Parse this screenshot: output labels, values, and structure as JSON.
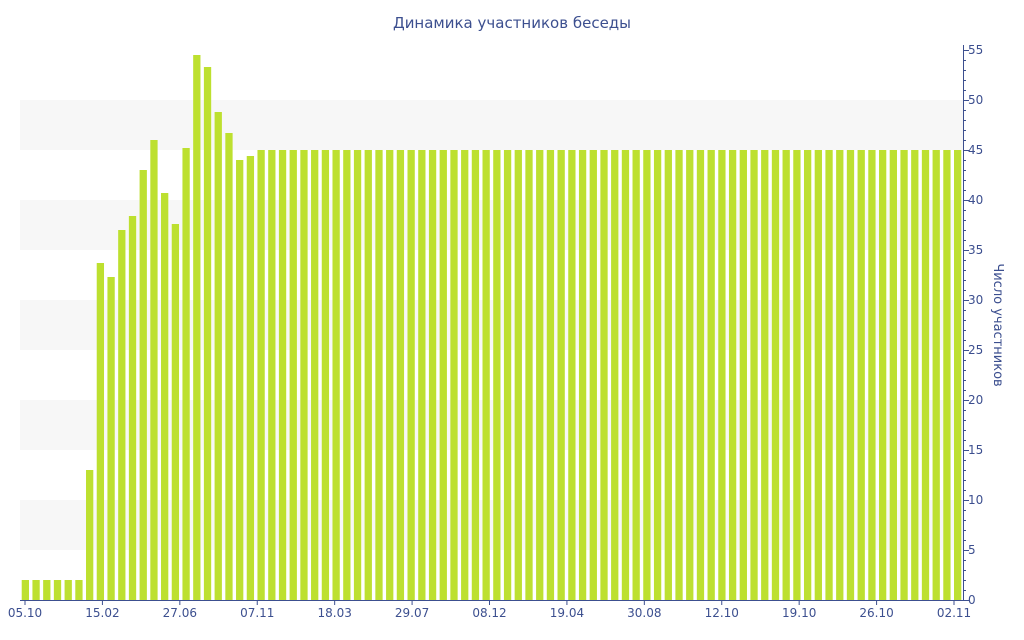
{
  "chart_data": {
    "type": "bar",
    "title": "Динамика участников беседы",
    "xlabel": "",
    "ylabel": "Число участников",
    "y_axis_side": "right",
    "ylim": [
      0,
      55
    ],
    "yticks": [
      0,
      5,
      10,
      15,
      20,
      25,
      30,
      35,
      40,
      45,
      50,
      55
    ],
    "x_tick_labels": [
      "05.10",
      "15.02",
      "27.06",
      "07.11",
      "18.03",
      "29.07",
      "08.12",
      "19.04",
      "30.08",
      "12.10",
      "19.10",
      "26.10",
      "02.11"
    ],
    "grid": "alternating horizontal bands",
    "colors": {
      "bar": "#bde02f",
      "text": "#3c4f8f",
      "band": "#f7f7f7",
      "axis": "#3c4f8f"
    },
    "values": [
      2,
      2,
      2,
      2,
      2,
      2,
      13,
      33.7,
      32.3,
      37,
      38.4,
      43,
      46,
      40.7,
      37.6,
      45.2,
      54.5,
      53.3,
      48.8,
      46.7,
      44,
      44.4,
      45,
      45,
      45,
      45,
      45,
      45,
      45,
      45,
      45,
      45,
      45,
      45,
      45,
      45,
      45,
      45,
      45,
      45,
      45,
      45,
      45,
      45,
      45,
      45,
      45,
      45,
      45,
      45,
      45,
      45,
      45,
      45,
      45,
      45,
      45,
      45,
      45,
      45,
      45,
      45,
      45,
      45,
      45,
      45,
      45,
      45,
      45,
      45,
      45,
      45,
      45,
      45,
      45,
      45,
      45,
      45,
      45,
      45,
      45,
      45,
      45,
      45,
      45,
      45,
      45,
      45
    ]
  }
}
